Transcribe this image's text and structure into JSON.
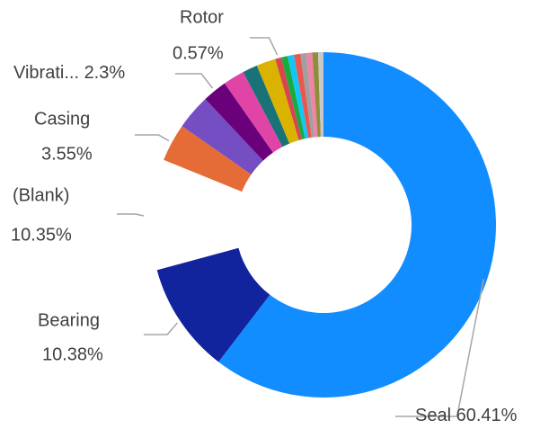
{
  "chart_data": {
    "type": "donut",
    "categories": [
      "Seal",
      "Bearing",
      "(Blank)",
      "Casing",
      null,
      "Vibrati...",
      null,
      null,
      null,
      "Rotor",
      null,
      null,
      null,
      null,
      null,
      null,
      null
    ],
    "values": [
      60.41,
      10.38,
      10.35,
      3.55,
      3.3,
      2.3,
      2.0,
      1.4,
      1.8,
      0.57,
      0.6,
      0.6,
      0.6,
      0.55,
      0.55,
      0.54,
      0.5
    ],
    "value_labels": [
      "60.41%",
      "10.38%",
      "10.35%",
      "3.55%",
      null,
      "2.3%",
      null,
      null,
      null,
      "0.57%",
      null,
      null,
      null,
      null,
      null,
      null,
      null
    ],
    "colors": [
      "#118DFF",
      "#12239E",
      "#FFFFFF",
      "#E66C37",
      "#744EC2",
      "#6B007B",
      "#E044A7",
      "#197278",
      "#D9B300",
      "#D64550",
      "#1AAB40",
      "#15C6F4",
      "#E8584F",
      "#A0A0A0",
      "#F083A6",
      "#8D8D3C",
      "#C8C8C8"
    ]
  }
}
